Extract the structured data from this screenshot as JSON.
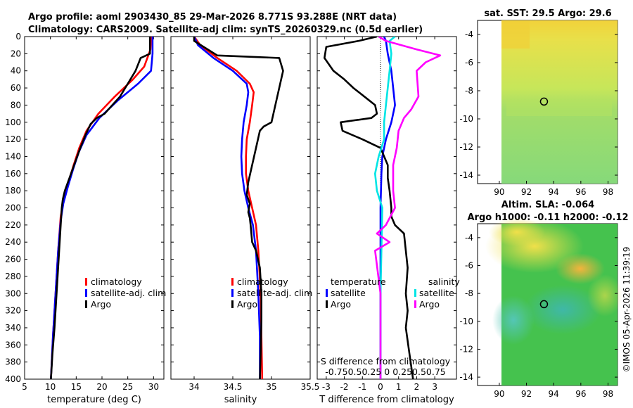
{
  "figure": {
    "title_line1": "Argo profile: aoml 2903430_85 29-Mar-2026 8.771S 93.288E (NRT data)",
    "title_line2": "Climatology: CARS2009. Satellite-adj clim: synTS_20260329.nc (0.5d earlier)",
    "credit": "©IMOS 05-Apr-2026 11:39:19"
  },
  "colors": {
    "climatology": "#ff0000",
    "satellite": "#0000ff",
    "argo": "#000000",
    "sat_salinity": "#00e5e5",
    "argo_salinity": "#ff00ff"
  },
  "chart_data": [
    {
      "id": "temperature",
      "type": "line",
      "xlabel": "temperature (deg C)",
      "xlim": [
        5,
        32
      ],
      "ylim": [
        0,
        400
      ],
      "y_reversed": true,
      "xticks": [
        5,
        10,
        15,
        20,
        25,
        30
      ],
      "yticks": [
        0,
        20,
        40,
        60,
        80,
        100,
        120,
        140,
        160,
        180,
        200,
        220,
        240,
        260,
        280,
        300,
        320,
        340,
        360,
        380,
        400
      ],
      "legend": [
        "climatology",
        "satellite-adj. clim",
        "Argo"
      ],
      "series": [
        {
          "name": "climatology",
          "color_key": "climatology",
          "x": [
            29.5,
            29.4,
            28.2,
            26,
            22.5,
            19.3,
            17,
            15.6,
            14.5,
            13.5,
            12.6,
            12,
            11.5,
            11,
            10.5,
            10.1
          ],
          "y": [
            0,
            15,
            35,
            50,
            70,
            90,
            110,
            130,
            150,
            170,
            190,
            210,
            250,
            300,
            350,
            400
          ]
        },
        {
          "name": "satellite-adj. clim",
          "color_key": "satellite",
          "x": [
            29.8,
            29.8,
            29.5,
            27,
            23,
            19.5,
            17,
            15.5,
            14.4,
            13.4,
            12.5,
            12,
            11.5,
            11,
            10.5,
            10.1
          ],
          "y": [
            0,
            20,
            40,
            55,
            75,
            95,
            115,
            135,
            155,
            175,
            195,
            215,
            250,
            300,
            350,
            400
          ]
        },
        {
          "name": "Argo",
          "color_key": "argo",
          "x": [
            29.3,
            29.3,
            27.5,
            26.5,
            25,
            23.5,
            22,
            20.5,
            19,
            17.8,
            16.8,
            15.8,
            15.2,
            14.6,
            14,
            13.4,
            12.8,
            12.4,
            12.2,
            12,
            11.7,
            11.4,
            11.1,
            10.8,
            10.4,
            10.1
          ],
          "y": [
            0,
            20,
            25,
            40,
            55,
            70,
            80,
            90,
            95,
            102,
            115,
            130,
            140,
            150,
            160,
            170,
            180,
            190,
            200,
            220,
            250,
            280,
            310,
            340,
            370,
            400
          ]
        }
      ]
    },
    {
      "id": "salinity",
      "type": "line",
      "xlabel": "salinity",
      "xlim": [
        33.7,
        35.5
      ],
      "ylim": [
        0,
        400
      ],
      "y_reversed": true,
      "xticks": [
        34,
        34.5,
        35,
        35.5
      ],
      "legend": [
        "climatology",
        "satellite-adj. clim",
        "Argo"
      ],
      "series": [
        {
          "name": "climatology",
          "color_key": "climatology",
          "x": [
            34.0,
            34.08,
            34.3,
            34.55,
            34.72,
            34.77,
            34.75,
            34.72,
            34.68,
            34.67,
            34.67,
            34.7,
            34.75,
            34.8,
            34.83,
            34.86,
            34.87,
            34.88
          ],
          "y": [
            0,
            10,
            25,
            40,
            55,
            65,
            80,
            100,
            120,
            140,
            160,
            180,
            200,
            220,
            250,
            300,
            350,
            400
          ]
        },
        {
          "name": "satellite-adj. clim",
          "color_key": "satellite",
          "x": [
            34.0,
            34.05,
            34.25,
            34.5,
            34.68,
            34.7,
            34.68,
            34.64,
            34.62,
            34.61,
            34.62,
            34.65,
            34.7,
            34.76,
            34.8,
            34.83,
            34.85,
            34.85
          ],
          "y": [
            0,
            10,
            25,
            40,
            55,
            65,
            80,
            100,
            120,
            140,
            160,
            180,
            200,
            220,
            250,
            300,
            350,
            400
          ]
        },
        {
          "name": "Argo",
          "color_key": "argo",
          "x": [
            34.0,
            34.0,
            34.3,
            35.1,
            35.15,
            35.1,
            35.05,
            35.0,
            34.9,
            34.85,
            34.8,
            34.75,
            34.7,
            34.68,
            34.72,
            34.7,
            34.72,
            34.73,
            34.75,
            34.8,
            34.85,
            34.87,
            34.87,
            34.86,
            34.85
          ],
          "y": [
            0,
            5,
            22,
            25,
            40,
            60,
            80,
            100,
            105,
            110,
            130,
            150,
            170,
            185,
            195,
            205,
            212,
            220,
            240,
            250,
            270,
            300,
            330,
            370,
            400
          ]
        }
      ]
    },
    {
      "id": "difference",
      "type": "line",
      "xlabel": "T difference from climatology",
      "xlim": [
        -3.5,
        4.2
      ],
      "ylim": [
        0,
        400
      ],
      "y_reversed": true,
      "xticks": [
        -3,
        -2,
        -1,
        0,
        1,
        2,
        3
      ],
      "top_label": "S difference from climatology",
      "top_ticks": "-0.750.50.25  0  0.250.50.75",
      "legend_temperature_header": "temperature",
      "legend_salinity_header": "salinity",
      "legend": [
        "satellite",
        "Argo",
        "satellite",
        "Argo"
      ],
      "series": [
        {
          "name": "satellite",
          "color_key": "satellite",
          "x": [
            0.2,
            0.3,
            0.4,
            0.6,
            0.7,
            0.8,
            0.7,
            0.6,
            0.3,
            0.1,
            0.05,
            0,
            0,
            0,
            0
          ],
          "y": [
            0,
            5,
            20,
            40,
            60,
            80,
            90,
            100,
            120,
            140,
            160,
            200,
            250,
            300,
            400
          ]
        },
        {
          "name": "Argo",
          "color_key": "argo",
          "x": [
            -0.2,
            -1.2,
            -3,
            -3.1,
            -2.6,
            -2,
            -1.5,
            -0.9,
            -0.3,
            -0.2,
            -0.5,
            -2.2,
            -2.1,
            -1,
            0,
            0.4,
            0.4,
            0.5,
            0.6,
            0.6,
            0.8,
            1.3,
            1.4,
            1.5,
            1.4,
            1.5,
            1.4,
            1.6,
            1.8
          ],
          "y": [
            0,
            5,
            12,
            25,
            40,
            50,
            60,
            70,
            80,
            90,
            95,
            100,
            110,
            120,
            130,
            150,
            165,
            180,
            200,
            210,
            220,
            230,
            250,
            270,
            300,
            320,
            340,
            370,
            400
          ]
        },
        {
          "name": "satellite",
          "color_key": "sat_salinity",
          "x": [
            0.8,
            0.5,
            0.6,
            0.5,
            0.4,
            0.3,
            0.2,
            0.2,
            -0.1,
            -0.3,
            -0.2,
            0.1,
            0,
            0
          ],
          "y": [
            0,
            5,
            20,
            40,
            60,
            80,
            100,
            120,
            140,
            160,
            180,
            200,
            300,
            400
          ]
        },
        {
          "name": "Argo",
          "color_key": "argo_salinity",
          "x": [
            -0.1,
            0.3,
            2,
            3.3,
            2.5,
            2,
            2.1,
            1.7,
            1.3,
            1.0,
            0.9,
            0.7,
            0.7,
            0.8,
            0.3,
            -0.2,
            0.5,
            -0.3,
            0,
            0
          ],
          "y": [
            0,
            5,
            15,
            22,
            30,
            40,
            70,
            85,
            95,
            110,
            130,
            150,
            180,
            200,
            220,
            230,
            240,
            250,
            300,
            400
          ]
        }
      ]
    }
  ],
  "maps": [
    {
      "id": "sst",
      "title": "sat. SST: 29.5 Argo: 29.6",
      "xticks": [
        90,
        92,
        94,
        96,
        98
      ],
      "yticks": [
        -4,
        -6,
        -8,
        -10,
        -12,
        -14
      ],
      "marker": {
        "lon": 93.288,
        "lat": -8.771
      }
    },
    {
      "id": "sla",
      "title_line1": "Altim. SLA: -0.064",
      "title_line2": "Argo h1000: -0.11 h2000: -0.12",
      "xticks": [
        90,
        92,
        94,
        96,
        98
      ],
      "yticks": [
        -4,
        -6,
        -8,
        -10,
        -12,
        -14
      ],
      "marker": {
        "lon": 93.288,
        "lat": -8.771
      }
    }
  ]
}
